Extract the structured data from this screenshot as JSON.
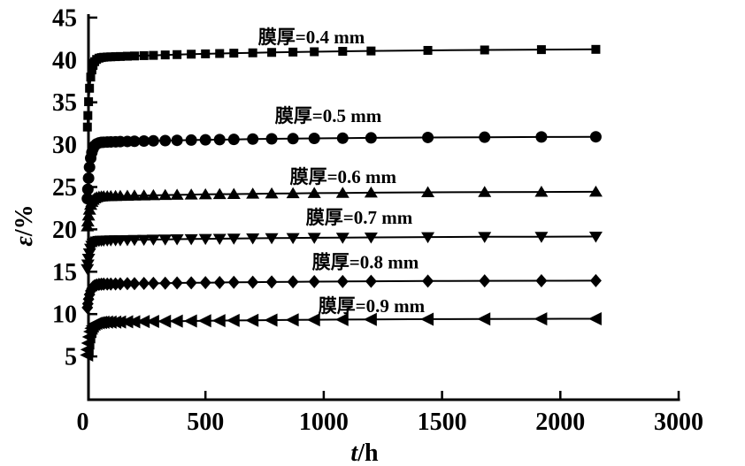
{
  "figure": {
    "background": "#ffffff",
    "ink_color": "#000000"
  },
  "chart_data": {
    "type": "line",
    "title": "",
    "xlabel": "t/h",
    "xlabel_parts": {
      "italic": "t",
      "upright": "/h"
    },
    "ylabel": "ε/%",
    "ylabel_parts": {
      "italic": "ε",
      "upright": "/%"
    },
    "xlim": [
      0,
      3000
    ],
    "ylim": [
      0,
      45
    ],
    "grid": false,
    "legend_position": "inline-labels-above-curves",
    "axis_note": "rightmost tick labeled 3000 sits at the 2500 spacing position in the source figure",
    "x_ticks": [
      {
        "label": "0",
        "pos": 0
      },
      {
        "label": "500",
        "pos": 500
      },
      {
        "label": "1000",
        "pos": 1000
      },
      {
        "label": "1500",
        "pos": 1500
      },
      {
        "label": "2000",
        "pos": 2000
      },
      {
        "label": "3000",
        "pos": 2500
      }
    ],
    "y_ticks": [
      5,
      10,
      15,
      20,
      25,
      30,
      35,
      40,
      45
    ],
    "t_hours": [
      1,
      3,
      6,
      10,
      15,
      20,
      25,
      32,
      40,
      50,
      60,
      70,
      85,
      100,
      120,
      140,
      170,
      200,
      240,
      280,
      330,
      380,
      440,
      500,
      560,
      620,
      700,
      780,
      870,
      960,
      1080,
      1200,
      1440,
      1680,
      1920,
      2150
    ],
    "series": [
      {
        "name": "膜厚=0.4 mm",
        "thickness_mm": 0.4,
        "marker": "square",
        "values": [
          32.08,
          33.44,
          35.07,
          36.66,
          37.98,
          38.82,
          39.36,
          39.8,
          40.06,
          40.21,
          40.28,
          40.32,
          40.35,
          40.37,
          40.39,
          40.41,
          40.44,
          40.47,
          40.51,
          40.54,
          40.59,
          40.63,
          40.68,
          40.72,
          40.76,
          40.8,
          40.84,
          40.89,
          40.93,
          40.97,
          41.02,
          41.06,
          41.13,
          41.18,
          41.22,
          41.25
        ],
        "label_t": 948,
        "label_eps": 42.7
      },
      {
        "name": "膜厚=0.5 mm",
        "thickness_mm": 0.5,
        "marker": "circle",
        "values": [
          23.63,
          24.73,
          26.05,
          27.34,
          28.41,
          29.09,
          29.52,
          29.88,
          30.09,
          30.21,
          30.27,
          30.29,
          30.31,
          30.33,
          30.34,
          30.36,
          30.38,
          30.4,
          30.43,
          30.45,
          30.48,
          30.51,
          30.54,
          30.57,
          30.6,
          30.62,
          30.66,
          30.69,
          30.71,
          30.74,
          30.77,
          30.8,
          30.85,
          30.88,
          30.91,
          30.93
        ],
        "label_t": 1019,
        "label_eps": 33.4
      },
      {
        "name": "膜厚=0.6 mm",
        "thickness_mm": 0.6,
        "marker": "triangle-up",
        "values": [
          20.34,
          20.92,
          21.62,
          22.31,
          22.88,
          23.24,
          23.47,
          23.66,
          23.78,
          23.84,
          23.88,
          23.89,
          23.91,
          23.92,
          23.93,
          23.94,
          23.96,
          23.98,
          24.0,
          24.02,
          24.05,
          24.07,
          24.1,
          24.13,
          24.15,
          24.17,
          24.2,
          24.23,
          24.25,
          24.28,
          24.3,
          24.33,
          24.37,
          24.4,
          24.42,
          24.44
        ],
        "label_t": 1082,
        "label_eps": 26.2
      },
      {
        "name": "膜厚=0.7 mm",
        "thickness_mm": 0.7,
        "marker": "triangle-down",
        "values": [
          15.32,
          15.87,
          16.54,
          17.19,
          17.73,
          18.07,
          18.29,
          18.47,
          18.58,
          18.64,
          18.67,
          18.69,
          18.7,
          18.71,
          18.72,
          18.73,
          18.74,
          18.76,
          18.78,
          18.8,
          18.82,
          18.84,
          18.86,
          18.88,
          18.9,
          18.92,
          18.95,
          18.97,
          18.99,
          19.01,
          19.03,
          19.05,
          19.09,
          19.12,
          19.13,
          19.15
        ],
        "label_t": 1150,
        "label_eps": 21.4
      },
      {
        "name": "膜厚=0.8 mm",
        "thickness_mm": 0.8,
        "marker": "diamond",
        "values": [
          10.76,
          11.22,
          11.77,
          12.3,
          12.74,
          13.02,
          13.2,
          13.35,
          13.44,
          13.5,
          13.53,
          13.54,
          13.54,
          13.55,
          13.56,
          13.57,
          13.59,
          13.6,
          13.62,
          13.63,
          13.65,
          13.67,
          13.69,
          13.71,
          13.73,
          13.75,
          13.77,
          13.79,
          13.81,
          13.83,
          13.85,
          13.87,
          13.9,
          13.92,
          13.94,
          13.95
        ],
        "label_t": 1176,
        "label_eps": 16.15
      },
      {
        "name": "膜厚=0.9 mm",
        "thickness_mm": 0.9,
        "marker": "triangle-left",
        "values": [
          5.17,
          5.8,
          6.57,
          7.31,
          7.93,
          8.33,
          8.58,
          8.79,
          8.91,
          8.98,
          9.02,
          9.04,
          9.05,
          9.05,
          9.06,
          9.07,
          9.09,
          9.1,
          9.12,
          9.13,
          9.15,
          9.17,
          9.19,
          9.21,
          9.23,
          9.25,
          9.27,
          9.29,
          9.31,
          9.33,
          9.35,
          9.37,
          9.4,
          9.42,
          9.44,
          9.45
        ],
        "label_t": 1202,
        "label_eps": 10.95
      }
    ]
  }
}
